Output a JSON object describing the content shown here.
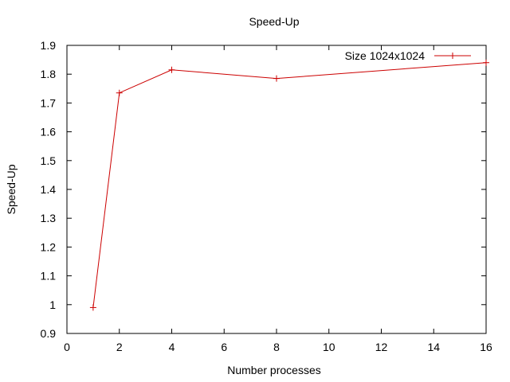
{
  "chart_data": {
    "type": "line",
    "title": "Speed-Up",
    "xlabel": "Number processes",
    "ylabel": "Speed-Up",
    "xlim": [
      0,
      16
    ],
    "ylim": [
      0.9,
      1.9
    ],
    "xticks": [
      0,
      2,
      4,
      6,
      8,
      10,
      12,
      14,
      16
    ],
    "yticks": [
      0.9,
      1,
      1.1,
      1.2,
      1.3,
      1.4,
      1.5,
      1.6,
      1.7,
      1.8,
      1.9
    ],
    "xtick_labels": [
      "0",
      "2",
      "4",
      "6",
      "8",
      "10",
      "12",
      "14",
      "16"
    ],
    "ytick_labels": [
      "0.9",
      "1",
      "1.1",
      "1.2",
      "1.3",
      "1.4",
      "1.5",
      "1.6",
      "1.7",
      "1.8",
      "1.9"
    ],
    "grid": false,
    "legend_position": "top-right",
    "series": [
      {
        "name": "Size 1024x1024",
        "color": "#cc0000",
        "marker": "plus",
        "x": [
          1,
          2,
          4,
          8,
          16
        ],
        "y": [
          0.99,
          1.735,
          1.815,
          1.785,
          1.84
        ]
      }
    ]
  }
}
